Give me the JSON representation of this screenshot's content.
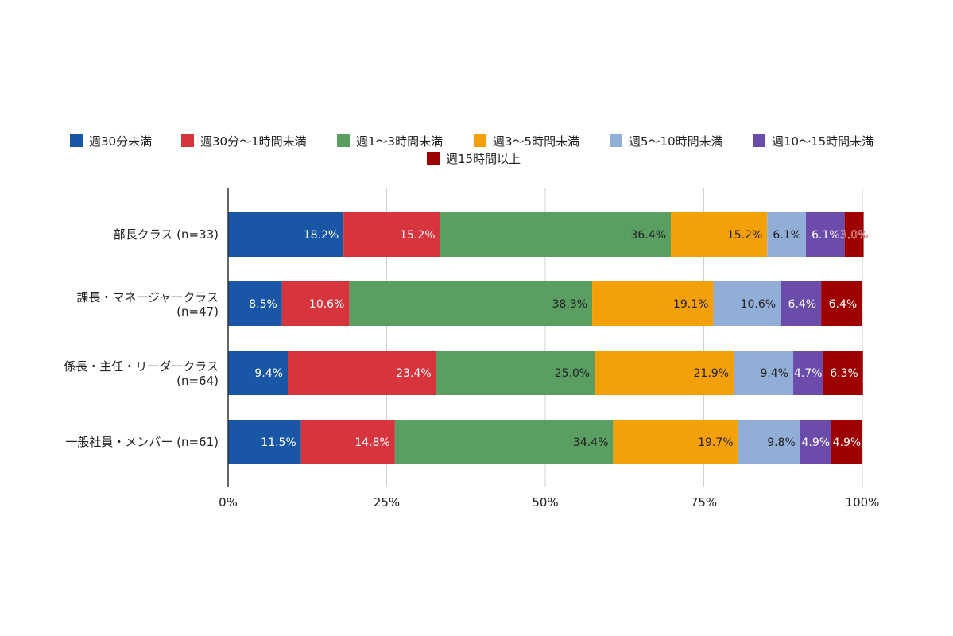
{
  "chart_data": {
    "type": "bar",
    "orientation": "horizontal",
    "stacked": "percent",
    "legend_position": "top",
    "grid": true,
    "xlim": [
      0,
      100
    ],
    "x_ticks": [
      "0%",
      "25%",
      "50%",
      "75%",
      "100%"
    ],
    "x_tick_values": [
      0,
      25,
      50,
      75,
      100
    ],
    "categories": [
      [
        "部長クラス (n=33)"
      ],
      [
        "課長・マネージャークラス",
        "(n=47)"
      ],
      [
        "係長・主任・リーダークラス",
        "(n=64)"
      ],
      [
        "一般社員・メンバー (n=61)"
      ]
    ],
    "series": [
      {
        "name": "週30分未満",
        "color": "#1a56a6",
        "values": [
          18.2,
          8.5,
          9.4,
          11.5
        ],
        "labels": [
          "18.2%",
          "8.5%",
          "9.4%",
          "11.5%"
        ]
      },
      {
        "name": "週30分〜1時間未満",
        "color": "#d6353d",
        "values": [
          15.2,
          10.6,
          23.4,
          14.8
        ],
        "labels": [
          "15.2%",
          "10.6%",
          "23.4%",
          "14.8%"
        ]
      },
      {
        "name": "週1〜3時間未満",
        "color": "#5a9e62",
        "values": [
          36.4,
          38.3,
          25.0,
          34.4
        ],
        "labels": [
          "36.4%",
          "38.3%",
          "25.0%",
          "34.4%"
        ]
      },
      {
        "name": "週3〜5時間未満",
        "color": "#f4a00b",
        "values": [
          15.2,
          19.1,
          21.9,
          19.7
        ],
        "labels": [
          "15.2%",
          "19.1%",
          "21.9%",
          "19.7%"
        ]
      },
      {
        "name": "週5〜10時間未満",
        "color": "#91aed6",
        "values": [
          6.1,
          10.6,
          9.4,
          9.8
        ],
        "labels": [
          "6.1%",
          "10.6%",
          "9.4%",
          "9.8%"
        ]
      },
      {
        "name": "週10〜15時間未満",
        "color": "#6c4cab",
        "values": [
          6.1,
          6.4,
          4.7,
          4.9
        ],
        "labels": [
          "6.1%",
          "6.4%",
          "4.7%",
          "4.9%"
        ]
      },
      {
        "name": "週15時間以上",
        "color": "#9e0000",
        "values": [
          3.0,
          6.4,
          6.3,
          4.9
        ],
        "labels": [
          "3.0%",
          "6.4%",
          "6.3%",
          "4.9%"
        ]
      }
    ]
  }
}
